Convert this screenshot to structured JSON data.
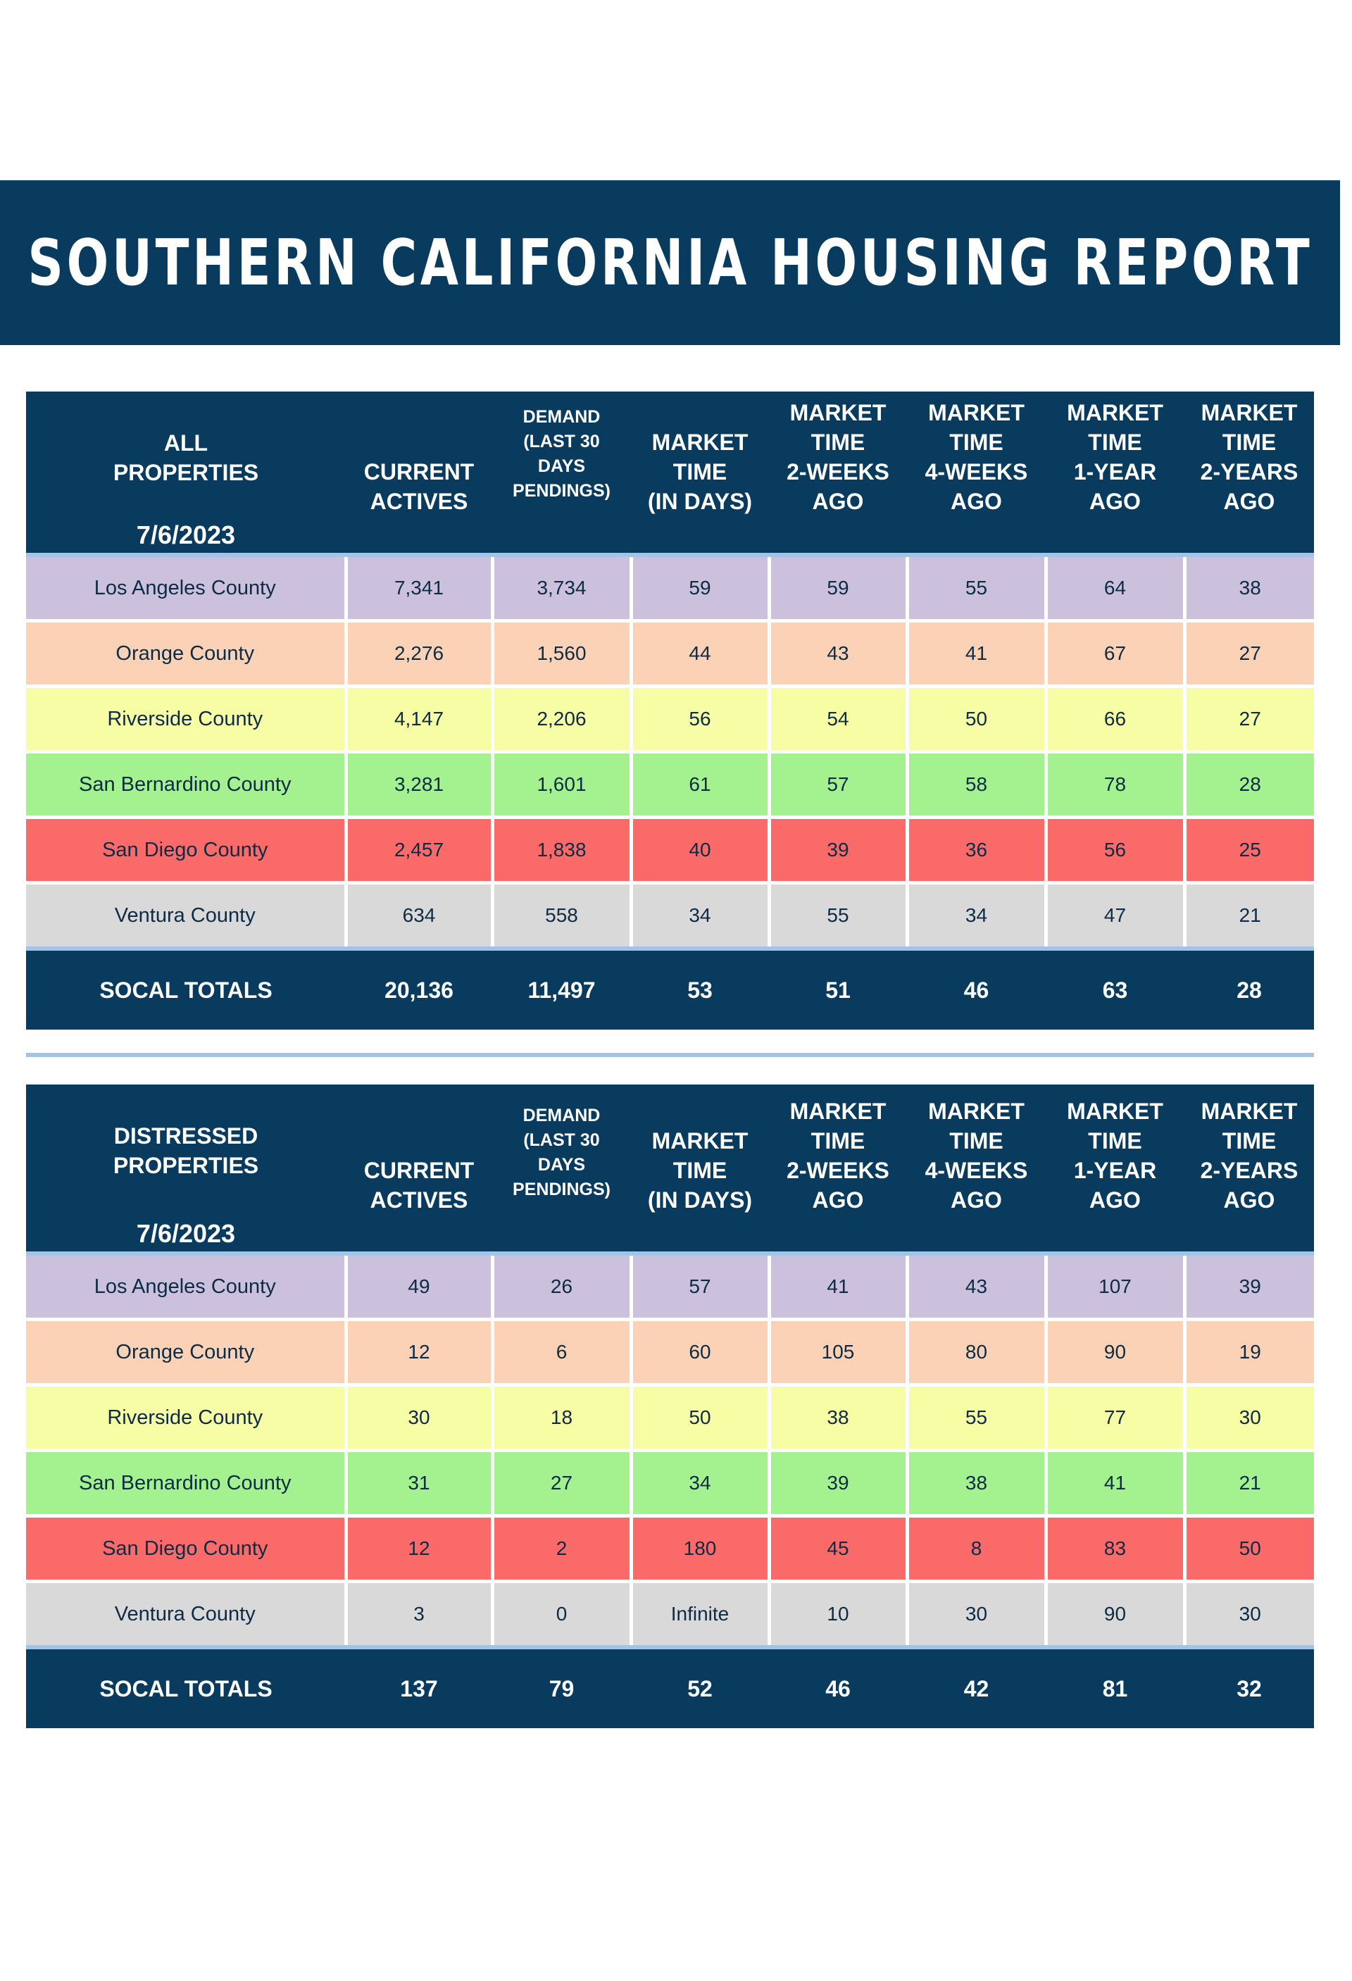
{
  "title": "SOUTHERN CALIFORNIA HOUSING REPORT",
  "tables": [
    {
      "label_line1": "ALL",
      "label_line2": "PROPERTIES",
      "date": "7/6/2023",
      "headers": {
        "current_line1": "CURRENT",
        "current_line2": "ACTIVES",
        "demand_line1": "DEMAND",
        "demand_line2": "(LAST 30",
        "demand_line3": "DAYS",
        "demand_line4": "PENDINGS)",
        "mt_line1": "MARKET",
        "mt_line2": "TIME",
        "mt_line3": "(IN DAYS)",
        "mt2w_line1": "MARKET",
        "mt2w_line2": "TIME",
        "mt2w_line3": "2-WEEKS",
        "mt2w_line4": "AGO",
        "mt4w_line1": "MARKET",
        "mt4w_line2": "TIME",
        "mt4w_line3": "4-WEEKS",
        "mt4w_line4": "AGO",
        "mt1y_line1": "MARKET",
        "mt1y_line2": "TIME",
        "mt1y_line3": "1-YEAR",
        "mt1y_line4": "AGO",
        "mt2y_line1": "MARKET",
        "mt2y_line2": "TIME",
        "mt2y_line3": "2-YEARS",
        "mt2y_line4": "AGO"
      },
      "rows": [
        {
          "county": "Los Angeles County",
          "cells": [
            "7,341",
            "3,734",
            "59",
            "59",
            "55",
            "64",
            "38"
          ]
        },
        {
          "county": "Orange County",
          "cells": [
            "2,276",
            "1,560",
            "44",
            "43",
            "41",
            "67",
            "27"
          ]
        },
        {
          "county": "Riverside County",
          "cells": [
            "4,147",
            "2,206",
            "56",
            "54",
            "50",
            "66",
            "27"
          ]
        },
        {
          "county": "San Bernardino County",
          "cells": [
            "3,281",
            "1,601",
            "61",
            "57",
            "58",
            "78",
            "28"
          ]
        },
        {
          "county": "San Diego County",
          "cells": [
            "2,457",
            "1,838",
            "40",
            "39",
            "36",
            "56",
            "25"
          ]
        },
        {
          "county": "Ventura County",
          "cells": [
            "634",
            "558",
            "34",
            "55",
            "34",
            "47",
            "21"
          ]
        }
      ],
      "totals": {
        "label": "SOCAL TOTALS",
        "cells": [
          "20,136",
          "11,497",
          "53",
          "51",
          "46",
          "63",
          "28"
        ]
      }
    },
    {
      "label_line1": "DISTRESSED",
      "label_line2": "PROPERTIES",
      "date": "7/6/2023",
      "headers": {
        "current_line1": "CURRENT",
        "current_line2": "ACTIVES",
        "demand_line1": "DEMAND",
        "demand_line2": "(LAST 30",
        "demand_line3": "DAYS",
        "demand_line4": "PENDINGS)",
        "mt_line1": "MARKET",
        "mt_line2": "TIME",
        "mt_line3": "(IN DAYS)",
        "mt2w_line1": "MARKET",
        "mt2w_line2": "TIME",
        "mt2w_line3": "2-WEEKS",
        "mt2w_line4": "AGO",
        "mt4w_line1": "MARKET",
        "mt4w_line2": "TIME",
        "mt4w_line3": "4-WEEKS",
        "mt4w_line4": "AGO",
        "mt1y_line1": "MARKET",
        "mt1y_line2": "TIME",
        "mt1y_line3": "1-YEAR",
        "mt1y_line4": "AGO",
        "mt2y_line1": "MARKET",
        "mt2y_line2": "TIME",
        "mt2y_line3": "2-YEARS",
        "mt2y_line4": "AGO"
      },
      "rows": [
        {
          "county": "Los Angeles County",
          "cells": [
            "49",
            "26",
            "57",
            "41",
            "43",
            "107",
            "39"
          ]
        },
        {
          "county": "Orange County",
          "cells": [
            "12",
            "6",
            "60",
            "105",
            "80",
            "90",
            "19"
          ]
        },
        {
          "county": "Riverside County",
          "cells": [
            "30",
            "18",
            "50",
            "38",
            "55",
            "77",
            "30"
          ]
        },
        {
          "county": "San Bernardino County",
          "cells": [
            "31",
            "27",
            "34",
            "39",
            "38",
            "41",
            "21"
          ]
        },
        {
          "county": "San Diego County",
          "cells": [
            "12",
            "2",
            "180",
            "45",
            "8",
            "83",
            "50"
          ]
        },
        {
          "county": "Ventura County",
          "cells": [
            "3",
            "0",
            "Infinite",
            "10",
            "30",
            "90",
            "30"
          ]
        }
      ],
      "totals": {
        "label": "SOCAL TOTALS",
        "cells": [
          "137",
          "79",
          "52",
          "46",
          "42",
          "81",
          "32"
        ]
      }
    }
  ],
  "colors": {
    "navy": "#093b5e",
    "los_angeles": "#ccc1dd",
    "orange": "#fbd2b5",
    "riverside": "#f7fda5",
    "san_bernardino": "#a3f28f",
    "san_diego": "#fa6a69",
    "ventura": "#d9d9d9",
    "divider": "#a3c4e6"
  }
}
